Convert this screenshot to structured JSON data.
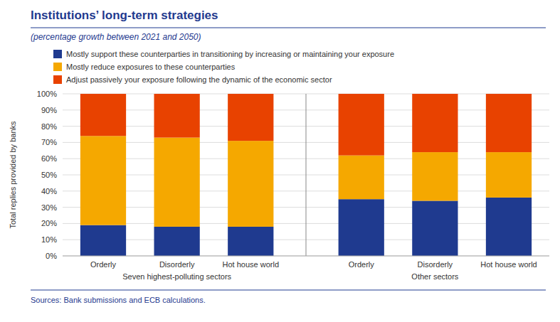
{
  "chart_data": {
    "type": "bar",
    "stacked": true,
    "title": "Institutions’ long-term strategies",
    "subtitle": "(percentage growth between 2021 and 2050)",
    "ylabel": "Total replies provided by banks",
    "categories": [
      "Orderly",
      "Disorderly",
      "Hot house world",
      "Orderly",
      "Disorderly",
      "Hot house world"
    ],
    "group_labels": [
      "Seven highest-polluting sectors",
      "Other sectors"
    ],
    "series": [
      {
        "name": "Mostly support these counterparties in transitioning by increasing or maintaining your exposure",
        "color": "#1f3a8f",
        "values": [
          19,
          18,
          18,
          35,
          34,
          36
        ]
      },
      {
        "name": "Mostly reduce exposures to these counterparties",
        "color": "#f5a800",
        "values": [
          55,
          55,
          53,
          27,
          30,
          28
        ]
      },
      {
        "name": "Adjust passively your exposure following the dynamic of the economic sector",
        "color": "#e84200",
        "values": [
          26,
          27,
          29,
          38,
          36,
          36
        ]
      }
    ],
    "ylim": [
      0,
      100
    ],
    "yticks": [
      {
        "value": 0,
        "label": "0%"
      },
      {
        "value": 10,
        "label": "10%"
      },
      {
        "value": 20,
        "label": "20%"
      },
      {
        "value": 30,
        "label": "30%"
      },
      {
        "value": 40,
        "label": "40%"
      },
      {
        "value": 50,
        "label": "50%"
      },
      {
        "value": 60,
        "label": "60%"
      },
      {
        "value": 70,
        "label": "70%"
      },
      {
        "value": 80,
        "label": "80%"
      },
      {
        "value": 90,
        "label": "90%"
      },
      {
        "value": 100,
        "label": "100%"
      }
    ],
    "grid": true,
    "legend": "top-left",
    "source": "Sources: Bank submissions and ECB calculations."
  }
}
